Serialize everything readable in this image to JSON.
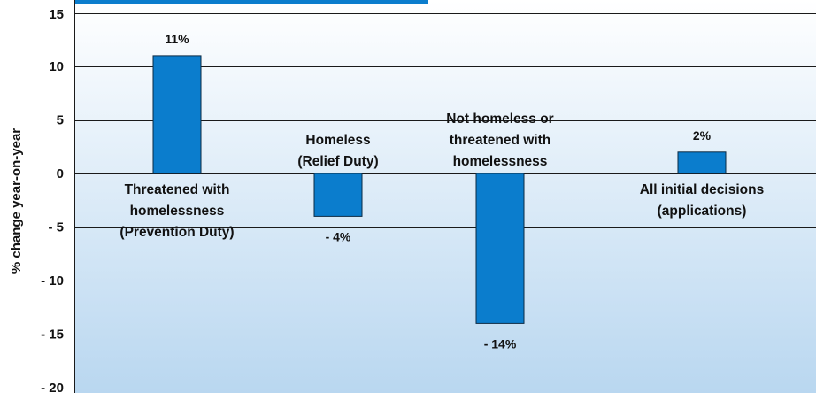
{
  "chart_data": {
    "type": "bar",
    "title": "",
    "xlabel": "",
    "ylabel": "% change year-on-year",
    "ylim": [
      -20,
      15
    ],
    "yticks": [
      15,
      10,
      5,
      0,
      -5,
      -10,
      -15,
      -20
    ],
    "ytick_labels": [
      "15",
      "10",
      "5",
      "0",
      "- 5",
      "- 10",
      "- 15",
      "- 20"
    ],
    "grid": true,
    "bar_color": "#0b7dcd",
    "background_top": "#ffffff",
    "background_bottom": "#b9d7f0",
    "categories": [
      {
        "label_lines": [
          "Threatened with",
          "homelessness",
          "(Prevention Duty)"
        ],
        "value": 11,
        "value_label": "11%"
      },
      {
        "label_lines": [
          "Homeless",
          "(Relief Duty)"
        ],
        "value": -4,
        "value_label": "- 4%"
      },
      {
        "label_lines": [
          "Not homeless or",
          "threatened with",
          "homelessness"
        ],
        "value": -14,
        "value_label": "- 14%"
      },
      {
        "label_lines": [
          "All initial decisions",
          "(applications)"
        ],
        "value": 2,
        "value_label": "2%"
      }
    ]
  }
}
